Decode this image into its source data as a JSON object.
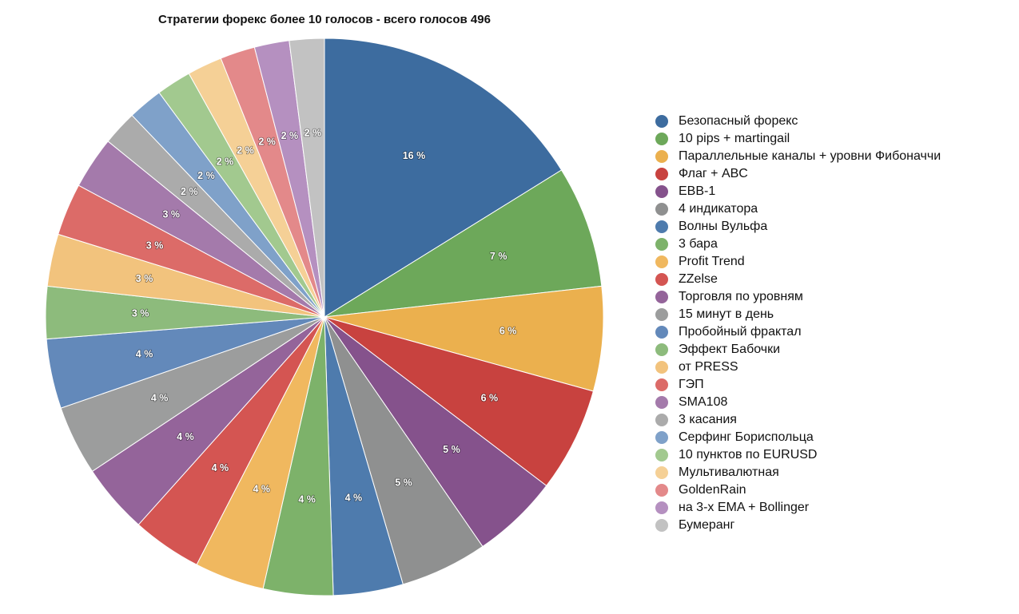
{
  "chart_data": {
    "type": "pie",
    "title": "Стратегии форекс более 10 голосов - всего голосов 496",
    "slices": [
      {
        "label": "Безопасный форекс",
        "value": 16,
        "value_label": "16 %",
        "color": "#3d6c9f"
      },
      {
        "label": "10 pips + martingail",
        "value": 7,
        "value_label": "7 %",
        "color": "#6da85a"
      },
      {
        "label": "Параллельные каналы + уровни Фибоначчи",
        "value": 6,
        "value_label": "6 %",
        "color": "#ebb04e"
      },
      {
        "label": "Флаг + ABC",
        "value": 6,
        "value_label": "6 %",
        "color": "#c8423f"
      },
      {
        "label": "EBB-1",
        "value": 5,
        "value_label": "5 %",
        "color": "#85528c"
      },
      {
        "label": "4 индикатора",
        "value": 5,
        "value_label": "5 %",
        "color": "#8f9090"
      },
      {
        "label": "Волны Вульфа",
        "value": 4,
        "value_label": "4 %",
        "color": "#4e7bad"
      },
      {
        "label": "3 бара",
        "value": 4,
        "value_label": "4 %",
        "color": "#7db26a"
      },
      {
        "label": "Profit Trend",
        "value": 4,
        "value_label": "4 %",
        "color": "#f0b85f"
      },
      {
        "label": "ZZelse",
        "value": 4,
        "value_label": "4 %",
        "color": "#d45552"
      },
      {
        "label": "Торговля по уровням",
        "value": 4,
        "value_label": "4 %",
        "color": "#94649a"
      },
      {
        "label": "15 минут в день",
        "value": 4,
        "value_label": "4 %",
        "color": "#9c9d9d"
      },
      {
        "label": "Пробойный фрактал",
        "value": 4,
        "value_label": "4 %",
        "color": "#6389ba"
      },
      {
        "label": "Эффект Бабочки",
        "value": 3,
        "value_label": "3 %",
        "color": "#8dbb7c"
      },
      {
        "label": "от PRESS",
        "value": 3,
        "value_label": "3 %",
        "color": "#f2c37d"
      },
      {
        "label": "ГЭП",
        "value": 3,
        "value_label": "3 %",
        "color": "#dc6b68"
      },
      {
        "label": "SMA108",
        "value": 3,
        "value_label": "3 %",
        "color": "#a47aab"
      },
      {
        "label": "3 касания",
        "value": 2,
        "value_label": "2 %",
        "color": "#ababab"
      },
      {
        "label": "Серфинг Бориспольца",
        "value": 2,
        "value_label": "2 %",
        "color": "#7fa1c9"
      },
      {
        "label": "10 пунктов по EURUSD",
        "value": 2,
        "value_label": "2 %",
        "color": "#a2c98f"
      },
      {
        "label": "Мультивалютная",
        "value": 2,
        "value_label": "2 %",
        "color": "#f5d096"
      },
      {
        "label": "GoldenRain",
        "value": 2,
        "value_label": "2 %",
        "color": "#e3898a"
      },
      {
        "label": "на 3-х EMA + Bollinger",
        "value": 2,
        "value_label": "2 %",
        "color": "#b590c0"
      },
      {
        "label": "Бумеранг",
        "value": 2,
        "value_label": "2 %",
        "color": "#c2c2c2"
      }
    ],
    "legend_position": "right"
  }
}
